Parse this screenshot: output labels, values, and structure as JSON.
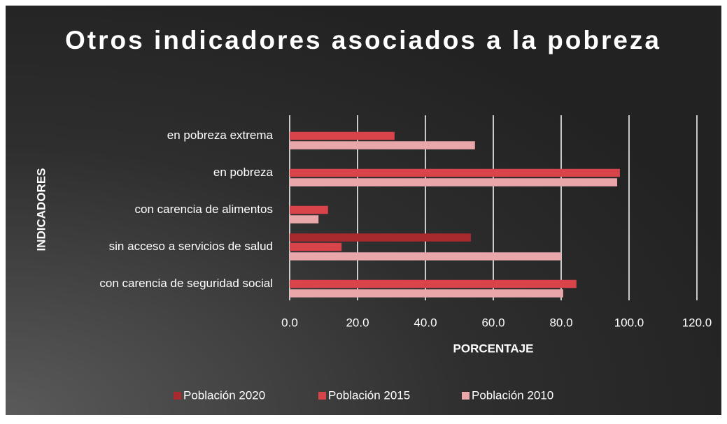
{
  "chart_data": {
    "type": "bar",
    "orientation": "horizontal",
    "title": "Otros indicadores asociados a la pobreza",
    "x_label": "PORCENTAJE",
    "y_label": "INDICADORES",
    "categories": [
      "en pobreza extrema",
      "en pobreza",
      "con carencia de alimentos",
      "sin acceso a servicios de salud",
      "con carencia de seguridad social"
    ],
    "series": [
      {
        "name": "Población 2020",
        "color": "#a8292e",
        "values": [
          null,
          null,
          null,
          53.4,
          null
        ]
      },
      {
        "name": "Población 2015",
        "color": "#d9434a",
        "values": [
          30.9,
          97.3,
          11.3,
          15.3,
          84.5
        ]
      },
      {
        "name": "Población 2010",
        "color": "#e9a7aa",
        "values": [
          54.6,
          96.5,
          8.5,
          80.0,
          80.6
        ]
      }
    ],
    "xlim": [
      0,
      120
    ],
    "xticks": [
      {
        "value": 0,
        "label": "0.0"
      },
      {
        "value": 20,
        "label": "20.0"
      },
      {
        "value": 40,
        "label": "40.0"
      },
      {
        "value": 60,
        "label": "60.0"
      },
      {
        "value": 80,
        "label": "80.0"
      },
      {
        "value": 100,
        "label": "100.0"
      },
      {
        "value": 120,
        "label": "120.0"
      }
    ],
    "grid": true,
    "legend": "bottom"
  }
}
